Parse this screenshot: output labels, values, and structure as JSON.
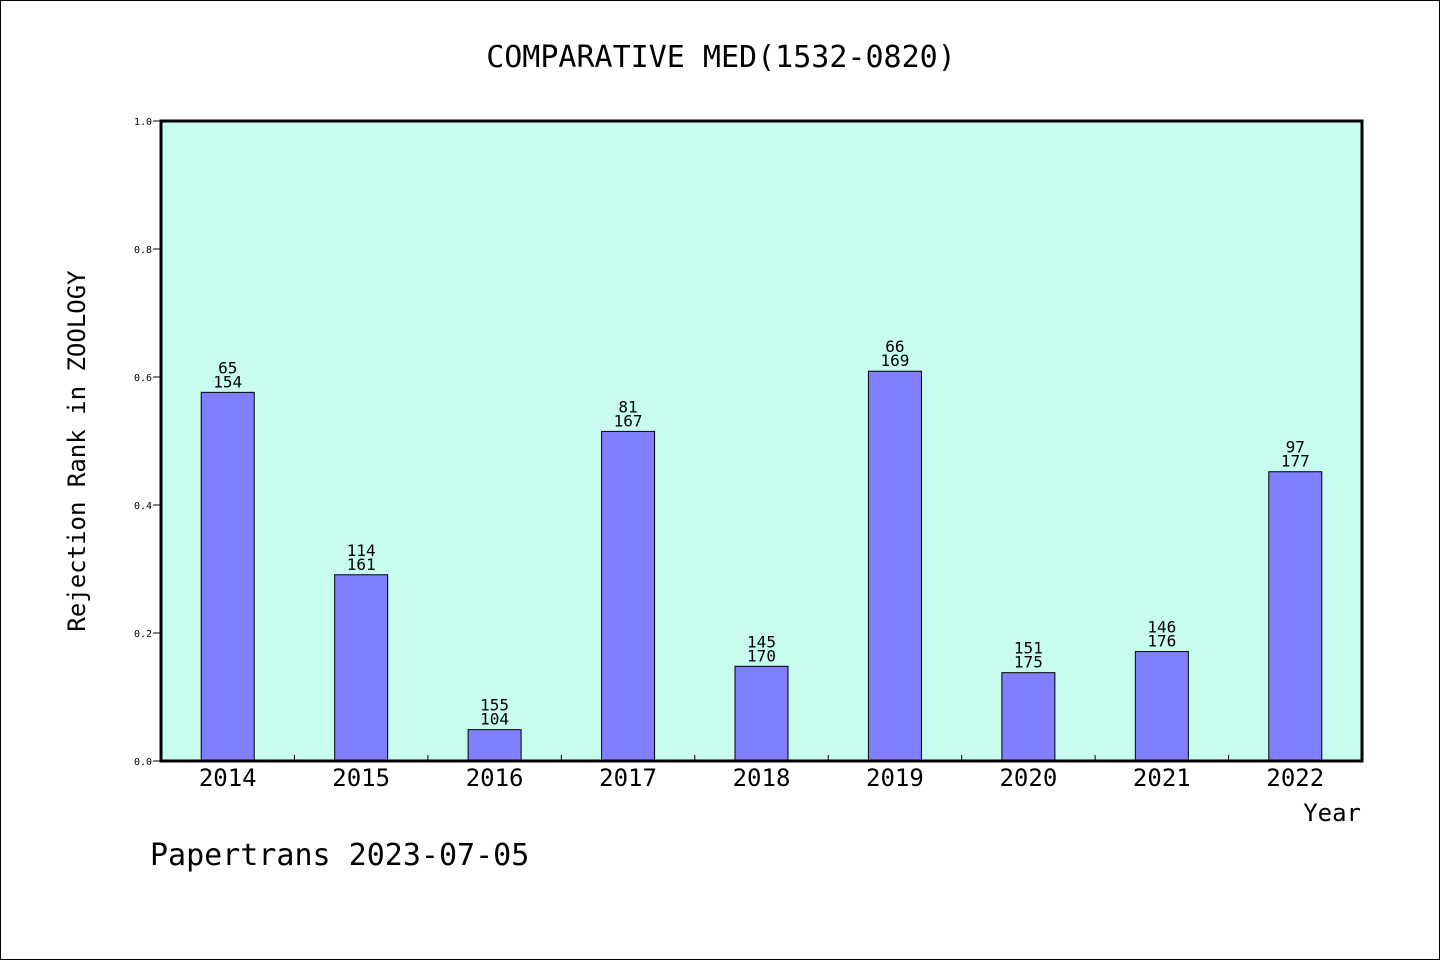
{
  "chart_data": {
    "type": "bar",
    "title": "COMPARATIVE MED(1532-0820)",
    "xlabel": "Year",
    "ylabel": "Rejection Rank in ZOOLOGY",
    "categories": [
      "2014",
      "2015",
      "2016",
      "2017",
      "2018",
      "2019",
      "2020",
      "2021",
      "2022"
    ],
    "values": [
      0.576,
      0.291,
      0.049,
      0.515,
      0.148,
      0.609,
      0.138,
      0.171,
      0.452
    ],
    "label_top": [
      "65",
      "114",
      "155",
      "81",
      "145",
      "66",
      "151",
      "146",
      "97"
    ],
    "label_bottom": [
      "154",
      "161",
      "104",
      "167",
      "170",
      "169",
      "175",
      "176",
      "177"
    ],
    "yticks": [
      0.0,
      0.2,
      0.4,
      0.6,
      0.8,
      1.0
    ],
    "ytick_labels": [
      "0.0",
      "0.2",
      "0.4",
      "0.6",
      "0.8",
      "1.0"
    ],
    "ylim": [
      0,
      1
    ],
    "grid": false,
    "colors": {
      "plot_background": "#c8fcee",
      "bar_fill": "#8080ff",
      "bar_stroke": "#000000"
    }
  },
  "footer": {
    "text": "Papertrans 2023-07-05"
  }
}
